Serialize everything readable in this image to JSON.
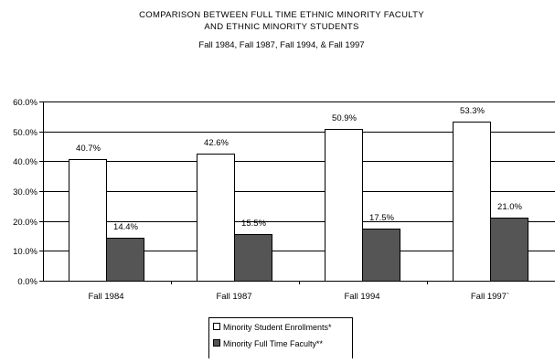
{
  "chart_data": {
    "type": "bar",
    "title": [
      "COMPARISON BETWEEN FULL TIME ETHNIC MINORITY FACULTY",
      "AND ETHNIC MINORITY STUDENTS"
    ],
    "subtitle": "Fall 1984, Fall 1987, Fall 1994, & Fall 1997",
    "categories": [
      "Fall 1984",
      "Fall 1987",
      "Fall 1994",
      "Fall 1997`"
    ],
    "series": [
      {
        "name": "Minority Student Enrollments*",
        "values": [
          40.7,
          42.6,
          50.9,
          53.3
        ],
        "labels": [
          "40.7%",
          "42.6%",
          "50.9%",
          "53.3%"
        ],
        "color": "#ffffff"
      },
      {
        "name": "Minority Full Time Faculty**",
        "values": [
          14.4,
          15.5,
          17.5,
          21.0
        ],
        "labels": [
          "14.4%",
          "15.5%",
          "17.5%",
          "21.0%"
        ],
        "color": "#555555"
      }
    ],
    "yticks": [
      "0.0%",
      "10.0%",
      "20.0%",
      "30.0%",
      "40.0%",
      "50.0%",
      "60.0%"
    ],
    "ylim": [
      0,
      60
    ],
    "grid": true,
    "legend": "bottom-center"
  }
}
